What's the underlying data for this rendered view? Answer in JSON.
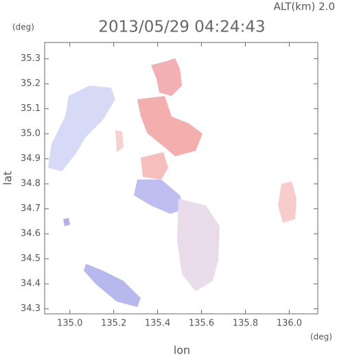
{
  "chart_data": {
    "type": "map",
    "title": "2013/05/29 04:24:43",
    "altitude_label": "ALT(km) 2.0",
    "x_unit": "(deg)",
    "y_unit": "(deg)",
    "xlabel": "lon",
    "ylabel": "lat",
    "xlim": [
      134.885,
      136.13
    ],
    "ylim": [
      34.28,
      35.365
    ],
    "xticks": [
      {
        "value": 135.0,
        "label": "135.0"
      },
      135.2,
      135.4,
      135.6,
      135.8,
      {
        "value": 136.0,
        "label": "136.0"
      }
    ],
    "yticks": [
      34.3,
      34.4,
      34.5,
      34.6,
      34.7,
      34.8,
      34.9,
      {
        "value": 35.0,
        "label": "35.0"
      },
      35.1,
      35.2,
      35.3
    ]
  }
}
